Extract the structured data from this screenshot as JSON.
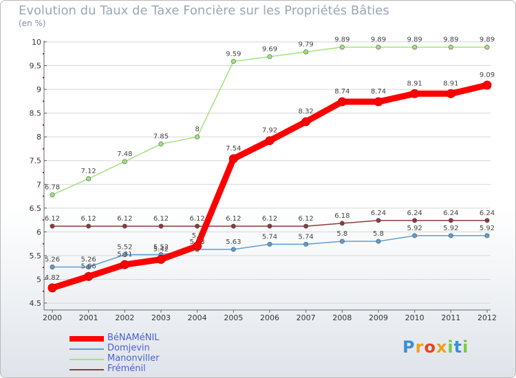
{
  "chart_data": {
    "type": "line",
    "title": "Evolution du Taux de Taxe Foncière sur les Propriétés Bâties",
    "subtitle": "(en %)",
    "xlabel": "",
    "ylabel": "(en %)",
    "ylim": [
      4.5,
      10
    ],
    "y_ticks": [
      "4.5",
      "5",
      "5.5",
      "6",
      "6.5",
      "7",
      "7.5",
      "8",
      "8.5",
      "9",
      "9.5",
      "10"
    ],
    "categories": [
      "2000",
      "2001",
      "2002",
      "2003",
      "2004",
      "2005",
      "2006",
      "2007",
      "2008",
      "2009",
      "2010",
      "2011",
      "2012"
    ],
    "series": [
      {
        "name": "Domjevin",
        "color": "#5e9ccf",
        "values": [
          5.26,
          5.26,
          5.52,
          5.52,
          5.63,
          5.63,
          5.74,
          5.74,
          5.8,
          5.8,
          5.92,
          5.92,
          5.92
        ],
        "labels": [
          "5.26",
          "5.26",
          "5.52",
          "5.52",
          "5.63",
          "5.63",
          "5.74",
          "5.74",
          "5.8",
          "5.8",
          "5.92",
          "5.92",
          "5.92"
        ]
      },
      {
        "name": "Manonviller",
        "color": "#9ee37a",
        "values": [
          6.78,
          7.12,
          7.48,
          7.85,
          8,
          9.59,
          9.69,
          9.79,
          9.89,
          9.89,
          9.89,
          9.89,
          9.89
        ],
        "labels": [
          "6.78",
          "7.12",
          "7.48",
          "7.85",
          "8",
          "9.59",
          "9.69",
          "9.79",
          "9.89",
          "9.89",
          "9.89",
          "9.89",
          "9.89"
        ]
      },
      {
        "name": "Fréménil",
        "color": "#8a3a3a",
        "values": [
          6.12,
          6.12,
          6.12,
          6.12,
          6.12,
          6.12,
          6.12,
          6.12,
          6.18,
          6.24,
          6.24,
          6.24,
          6.24
        ],
        "labels": [
          "6.12",
          "6.12",
          "6.12",
          "6.12",
          "6.12",
          "6.12",
          "6.12",
          "6.12",
          "6.18",
          "6.24",
          "6.24",
          "6.24",
          "6.24"
        ]
      },
      {
        "name": "BéNAMéNIL",
        "color": "#ff0000",
        "values": [
          4.82,
          5.06,
          5.31,
          5.42,
          5.7,
          7.54,
          7.92,
          8.32,
          8.74,
          8.74,
          8.91,
          8.91,
          9.09
        ],
        "labels": [
          "4.82",
          "5.06",
          "5.31",
          "5.42",
          "5.7",
          "7.54",
          "7.92",
          "8.32",
          "8.74",
          "8.74",
          "8.91",
          "8.91",
          "9.09"
        ]
      }
    ],
    "legend": [
      "BéNAMéNIL",
      "Domjevin",
      "Manonviller",
      "Fréménil"
    ]
  },
  "logo": {
    "text": "Proxiti",
    "letters": [
      "P",
      "r",
      "o",
      "x",
      "i",
      "t",
      "i"
    ],
    "colors": [
      "#3b8fd6",
      "#f0a020",
      "#e2451d",
      "#f0a020",
      "#7ac943",
      "#3b8fd6",
      "#7ac943"
    ]
  }
}
